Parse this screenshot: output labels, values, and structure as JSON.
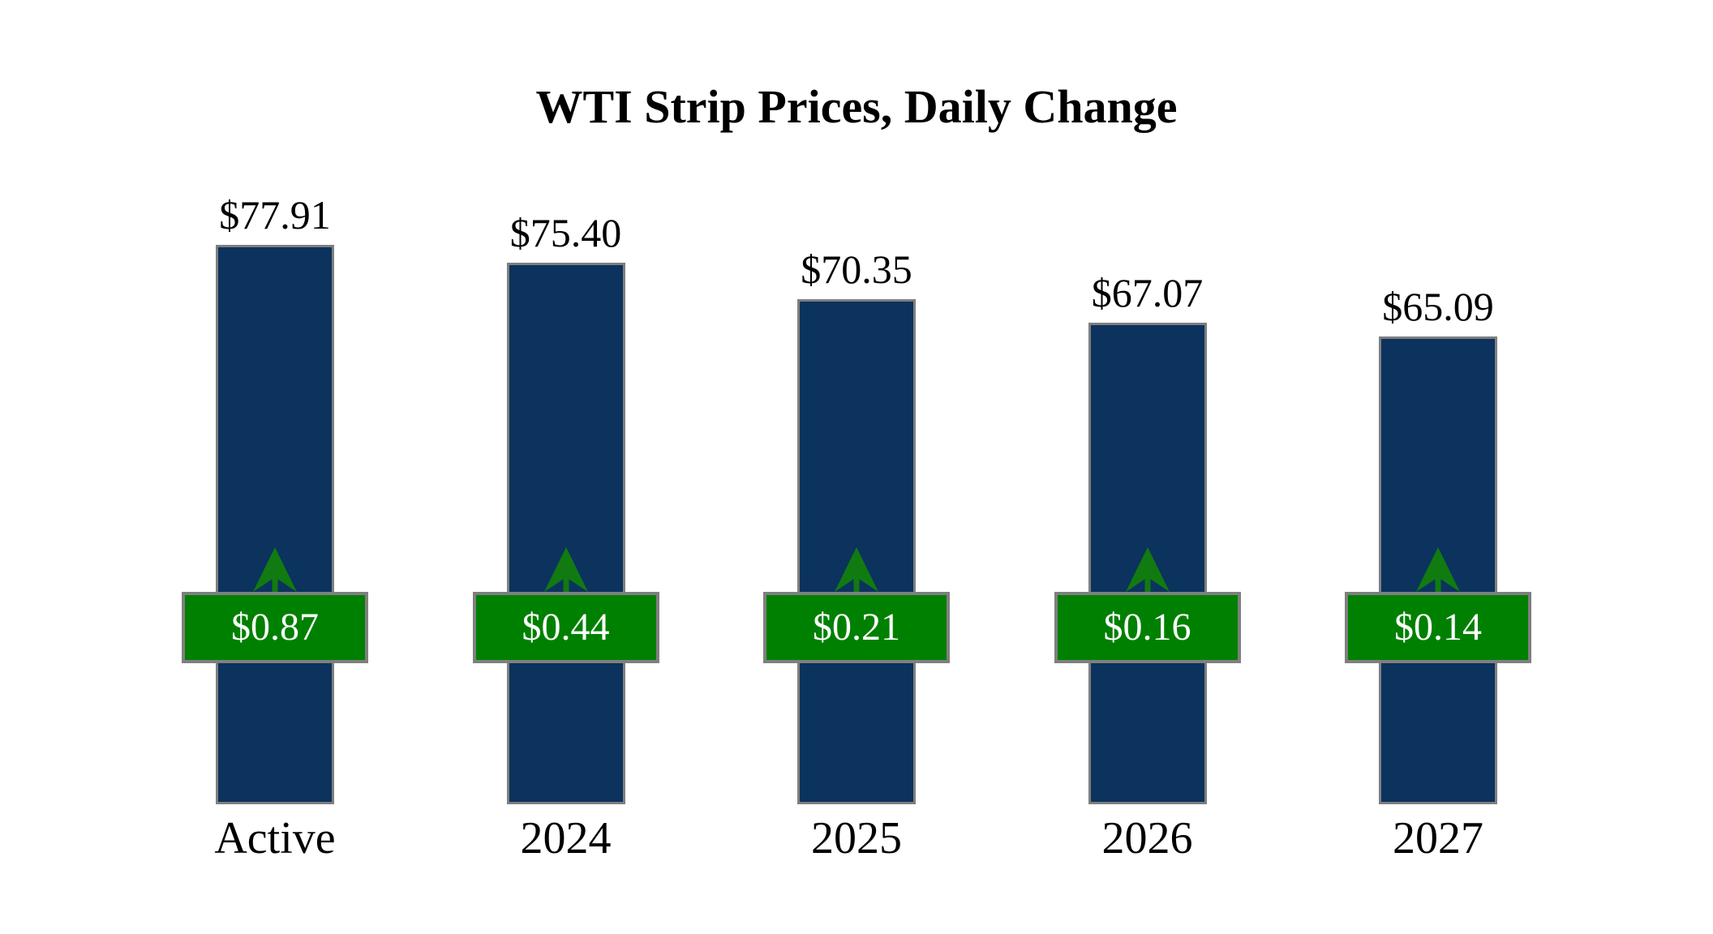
{
  "chart_data": {
    "type": "bar",
    "title": "WTI Strip Prices, Daily Change",
    "categories": [
      "Active",
      "2024",
      "2025",
      "2026",
      "2027"
    ],
    "series": [
      {
        "name": "Strip Price",
        "values": [
          77.91,
          75.4,
          70.35,
          67.07,
          65.09
        ],
        "labels": [
          "$77.91",
          "$75.40",
          "$70.35",
          "$67.07",
          "$65.09"
        ]
      },
      {
        "name": "Daily Change",
        "values": [
          0.87,
          0.44,
          0.21,
          0.16,
          0.14
        ],
        "labels": [
          "$0.87",
          "$0.44",
          "$0.21",
          "$0.16",
          "$0.14"
        ],
        "direction": "up"
      }
    ],
    "ylim": [
      0,
      77.91
    ],
    "grid": false,
    "legend": false,
    "colors": {
      "bar_fill": "#0b335d",
      "bar_border": "#7f7f7f",
      "badge_fill": "#008000",
      "badge_border": "#7f7f7f",
      "badge_text": "#ffffff",
      "arrow": "#117b11",
      "label_text": "#000000",
      "background": "#ffffff"
    }
  }
}
